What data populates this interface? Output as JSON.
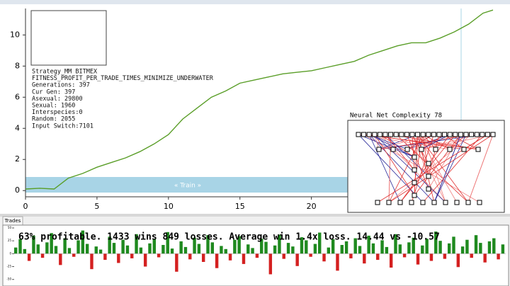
{
  "chart_data": [
    {
      "type": "line",
      "x": [
        0,
        1,
        2,
        3,
        4,
        5,
        6,
        7,
        8,
        9,
        10,
        11,
        12,
        13,
        14,
        15,
        16,
        17,
        18,
        19,
        20,
        21,
        22,
        23,
        24,
        25,
        26,
        27,
        28,
        29,
        30,
        31,
        32,
        32.7
      ],
      "series": [
        {
          "name": "Equity",
          "color": "#5a9e28",
          "values": [
            0.1,
            0.15,
            0.1,
            0.8,
            1.1,
            1.5,
            1.8,
            2.1,
            2.5,
            3.0,
            3.6,
            4.6,
            5.3,
            6.0,
            6.4,
            6.9,
            7.1,
            7.3,
            7.5,
            7.6,
            7.7,
            7.9,
            8.1,
            8.3,
            8.7,
            9.0,
            9.3,
            9.5,
            9.5,
            9.8,
            10.2,
            10.7,
            11.4,
            11.6
          ]
        }
      ],
      "xlim": [
        0,
        32.8
      ],
      "ylim": [
        -0.4,
        11.7
      ],
      "xticks": [
        0,
        5,
        10,
        15,
        20
      ],
      "yticks": [
        0,
        2,
        4,
        6,
        8,
        10
      ],
      "grid": false
    },
    {
      "type": "bar",
      "categories": [
        null,
        null,
        null,
        null,
        null,
        null,
        null,
        null,
        null,
        null,
        null,
        null,
        null,
        null,
        null,
        null,
        null,
        null,
        null,
        null
      ],
      "values": [
        0.3,
        0.25,
        0.35,
        0.45,
        0.25,
        0.1,
        0.15,
        0.15,
        0.1,
        0.2,
        0.2,
        0.25,
        0.3,
        0.35,
        0.15,
        0.3,
        0.4,
        0.6,
        0.55,
        1.0
      ],
      "colors": [
        "#e01010",
        "#e01010",
        "#e01010",
        "#e01010",
        "#e01010",
        "#e01010",
        "#e01010",
        "#e01010",
        "#e01010",
        "#e01010",
        "#1a7a1a",
        "#1a7a1a",
        "#1a7a1a",
        "#1a7a1a",
        "#1a7a1a",
        "#1a7a1a",
        "#1a7a1a",
        "#1a7a1a",
        "#1a7a1a",
        "#1a7a1a"
      ],
      "ylim": [
        0,
        1
      ]
    },
    {
      "type": "signed-bar",
      "title": "63% profitable. 1433 wins 849 losses. Average win 1.4x loss. 14.44 vs -10.57",
      "values": [
        12,
        28,
        9,
        -14,
        35,
        18,
        -8,
        22,
        40,
        15,
        -22,
        30,
        11,
        -6,
        26,
        45,
        19,
        -30,
        14,
        8,
        -12,
        33,
        21,
        -18,
        27,
        16,
        -9,
        38,
        12,
        -25,
        20,
        29,
        -7,
        17,
        42,
        10,
        -35,
        24,
        13,
        -11,
        31,
        19,
        -16,
        36,
        22,
        -28,
        15,
        9,
        -13,
        27,
        34,
        -20,
        18,
        11,
        -8,
        29,
        23,
        -40,
        16,
        37,
        -10,
        21,
        14,
        -24,
        32,
        26,
        -6,
        19,
        41,
        -15,
        12,
        28,
        -33,
        17,
        24,
        -9,
        30,
        15,
        -19,
        35,
        20,
        -12,
        26,
        13,
        -27,
        38,
        18,
        -7,
        22,
        31,
        -21,
        16,
        29,
        -14,
        43,
        25,
        -10,
        20,
        33,
        -26,
        14,
        27,
        -8,
        36,
        21,
        -17,
        24,
        30,
        -11,
        18
      ],
      "positive_color": "#1f8a1f",
      "negative_color": "#d42020",
      "ylim": [
        -60,
        50
      ],
      "yticks": [
        -50,
        -25,
        0,
        25,
        50
      ]
    }
  ],
  "train_label": "« Train »",
  "stats_panel": {
    "lines": [
      "Strategy_MM BITMEX",
      "FITNESS_PROFIT_PER_TRADE_TIMES_MINIMIZE_UNDERWATER",
      "Generations: 397",
      "Cur Gen: 397",
      "Asexual: 29800",
      "Sexual: 1960",
      "Interspecies:0",
      "Random: 2055",
      "Input Switch:7101"
    ]
  },
  "neural_net": {
    "title": "Neural Net Complexity 78"
  },
  "tab": {
    "label": "Trades"
  }
}
